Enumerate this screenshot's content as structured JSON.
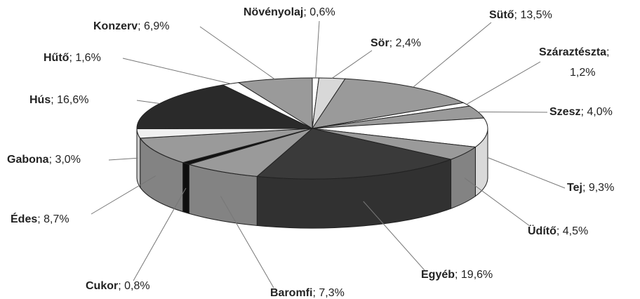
{
  "chart_data": {
    "type": "pie3d",
    "categories": [
      "Növényolaj",
      "Sör",
      "Sütő",
      "Száraztészta",
      "Szesz",
      "Tej",
      "Üdítő",
      "Egyéb",
      "Baromfi",
      "Cukor",
      "Édes",
      "Gabona",
      "Hús",
      "Hűtő",
      "Konzerv"
    ],
    "values": [
      0.6,
      2.4,
      13.5,
      1.2,
      4.0,
      9.3,
      4.5,
      19.6,
      7.3,
      0.8,
      8.7,
      3.0,
      16.6,
      1.6,
      6.9
    ],
    "value_labels": [
      "0,6%",
      "2,4%",
      "13,5%",
      "1,2%",
      "4,0%",
      "9,3%",
      "4,5%",
      "19,6%",
      "7,3%",
      "0,8%",
      "8,7%",
      "3,0%",
      "16,6%",
      "1,6%",
      "6,9%"
    ],
    "label_separator": "; ",
    "colors": [
      "#ffffff",
      "#d8d8d8",
      "#9a9a9a",
      "#ffffff",
      "#9a9a9a",
      "#ffffff",
      "#9a9a9a",
      "#3a3a3a",
      "#9a9a9a",
      "#111111",
      "#9a9a9a",
      "#f0f0f0",
      "#2a2a2a",
      "#ffffff",
      "#9a9a9a"
    ]
  }
}
